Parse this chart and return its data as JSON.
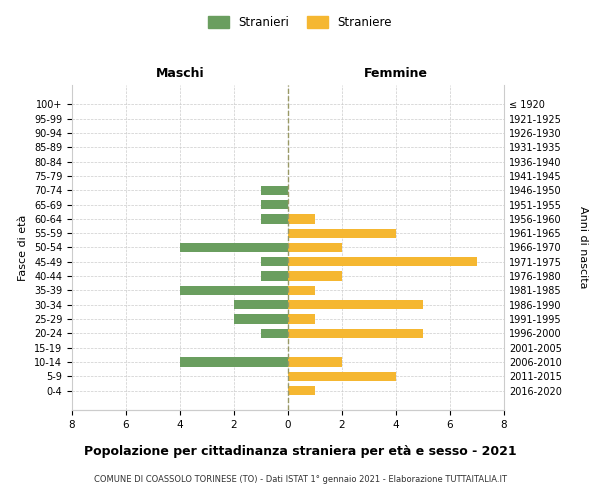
{
  "age_groups": [
    "100+",
    "95-99",
    "90-94",
    "85-89",
    "80-84",
    "75-79",
    "70-74",
    "65-69",
    "60-64",
    "55-59",
    "50-54",
    "45-49",
    "40-44",
    "35-39",
    "30-34",
    "25-29",
    "20-24",
    "15-19",
    "10-14",
    "5-9",
    "0-4"
  ],
  "birth_years": [
    "≤ 1920",
    "1921-1925",
    "1926-1930",
    "1931-1935",
    "1936-1940",
    "1941-1945",
    "1946-1950",
    "1951-1955",
    "1956-1960",
    "1961-1965",
    "1966-1970",
    "1971-1975",
    "1976-1980",
    "1981-1985",
    "1986-1990",
    "1991-1995",
    "1996-2000",
    "2001-2005",
    "2006-2010",
    "2011-2015",
    "2016-2020"
  ],
  "males": [
    0,
    0,
    0,
    0,
    0,
    0,
    1,
    1,
    1,
    0,
    4,
    1,
    1,
    4,
    2,
    2,
    1,
    0,
    4,
    0,
    0
  ],
  "females": [
    0,
    0,
    0,
    0,
    0,
    0,
    0,
    0,
    1,
    4,
    2,
    7,
    2,
    1,
    5,
    1,
    5,
    0,
    2,
    4,
    1
  ],
  "male_color": "#6a9e5f",
  "female_color": "#f5b731",
  "title": "Popolazione per cittadinanza straniera per età e sesso - 2021",
  "subtitle": "COMUNE DI COASSOLO TORINESE (TO) - Dati ISTAT 1° gennaio 2021 - Elaborazione TUTTAITALIA.IT",
  "xlabel_left": "Maschi",
  "xlabel_right": "Femmine",
  "ylabel_left": "Fasce di età",
  "ylabel_right": "Anni di nascita",
  "legend_male": "Stranieri",
  "legend_female": "Straniere",
  "xlim": 8,
  "background_color": "#ffffff",
  "grid_color": "#cccccc"
}
